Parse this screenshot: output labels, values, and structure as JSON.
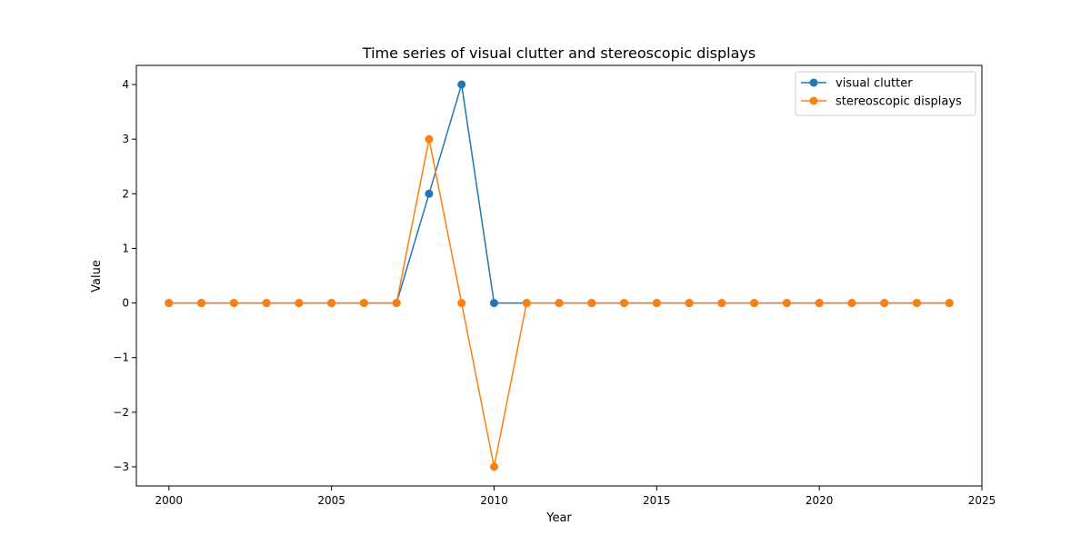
{
  "chart_data": {
    "type": "line",
    "title": "Time series of visual clutter and stereoscopic displays",
    "xlabel": "Year",
    "ylabel": "Value",
    "xlim": [
      1999,
      2025
    ],
    "ylim": [
      -3.35,
      4.35
    ],
    "xticks": [
      2000,
      2005,
      2010,
      2015,
      2020,
      2025
    ],
    "yticks": [
      -3,
      -2,
      -1,
      0,
      1,
      2,
      3,
      4
    ],
    "ytick_labels": [
      "−3",
      "−2",
      "−1",
      "0",
      "1",
      "2",
      "3",
      "4"
    ],
    "grid": false,
    "legend_position": "top-right",
    "x": [
      2000,
      2001,
      2002,
      2003,
      2004,
      2005,
      2006,
      2007,
      2008,
      2009,
      2010,
      2011,
      2012,
      2013,
      2014,
      2015,
      2016,
      2017,
      2018,
      2019,
      2020,
      2021,
      2022,
      2023,
      2024
    ],
    "series": [
      {
        "name": "visual clutter",
        "color": "#1f77b4",
        "values": [
          0,
          0,
          0,
          0,
          0,
          0,
          0,
          0,
          2,
          4,
          0,
          0,
          0,
          0,
          0,
          0,
          0,
          0,
          0,
          0,
          0,
          0,
          0,
          0,
          0
        ]
      },
      {
        "name": "stereoscopic displays",
        "color": "#ff7f0e",
        "values": [
          0,
          0,
          0,
          0,
          0,
          0,
          0,
          0,
          3,
          0,
          -3,
          0,
          0,
          0,
          0,
          0,
          0,
          0,
          0,
          0,
          0,
          0,
          0,
          0,
          0
        ]
      }
    ]
  }
}
